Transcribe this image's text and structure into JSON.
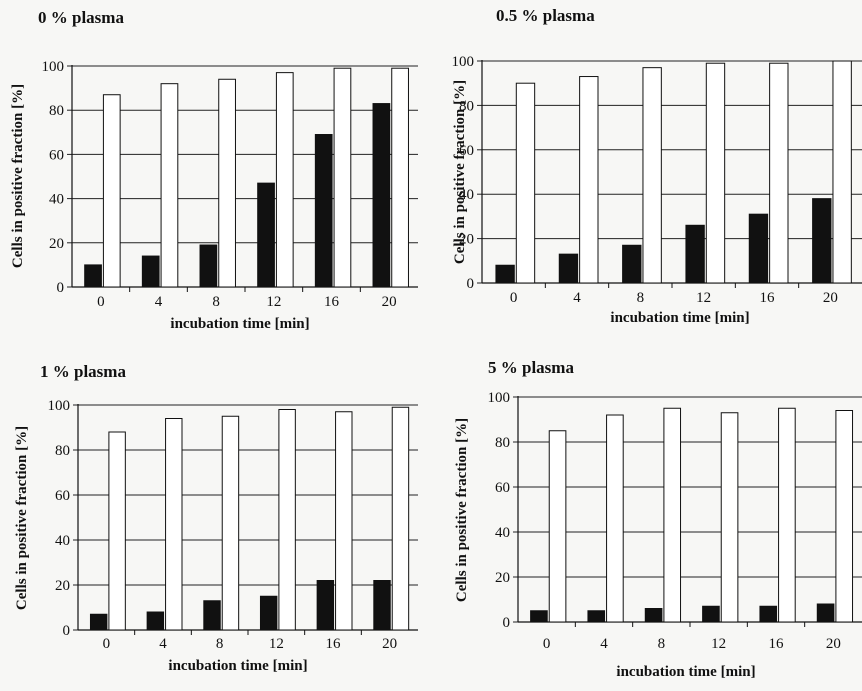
{
  "chart_data": [
    {
      "type": "bar",
      "title": "0 % plasma",
      "xlabel": "incubation time [min]",
      "ylabel": "Cells in positive fraction [%]",
      "ylim": [
        0,
        100
      ],
      "yticks": [
        0,
        20,
        40,
        60,
        80,
        100
      ],
      "grid": true,
      "categories": [
        "0",
        "4",
        "8",
        "12",
        "16",
        "20"
      ],
      "series": [
        {
          "values": [
            10,
            14,
            19,
            47,
            69,
            83
          ],
          "color": "#111111"
        },
        {
          "values": [
            87,
            92,
            94,
            97,
            99,
            99
          ],
          "color": "#ffffff"
        }
      ]
    },
    {
      "type": "bar",
      "title": "0.5 % plasma",
      "xlabel": "incubation time [min]",
      "ylabel": "Cells in positive fraction [%]",
      "ylim": [
        0,
        100
      ],
      "yticks": [
        0,
        20,
        40,
        60,
        80,
        100
      ],
      "grid": true,
      "categories": [
        "0",
        "4",
        "8",
        "12",
        "16",
        "20"
      ],
      "series": [
        {
          "values": [
            8,
            13,
            17,
            26,
            31,
            38
          ],
          "color": "#111111"
        },
        {
          "values": [
            90,
            93,
            97,
            99,
            99,
            100
          ],
          "color": "#ffffff"
        }
      ]
    },
    {
      "type": "bar",
      "title": "1 % plasma",
      "xlabel": "incubation time [min]",
      "ylabel": "Cells in positive fraction [%]",
      "ylim": [
        0,
        100
      ],
      "yticks": [
        0,
        20,
        40,
        60,
        80,
        100
      ],
      "grid": true,
      "categories": [
        "0",
        "4",
        "8",
        "12",
        "16",
        "20"
      ],
      "series": [
        {
          "values": [
            7,
            8,
            13,
            15,
            22,
            22
          ],
          "color": "#111111"
        },
        {
          "values": [
            88,
            94,
            95,
            98,
            97,
            99
          ],
          "color": "#ffffff"
        }
      ]
    },
    {
      "type": "bar",
      "title": "5 % plasma",
      "xlabel": "incubation time [min]",
      "ylabel": "Cells in positive fraction [%]",
      "ylim": [
        0,
        100
      ],
      "yticks": [
        0,
        20,
        40,
        60,
        80,
        100
      ],
      "grid": true,
      "categories": [
        "0",
        "4",
        "8",
        "12",
        "16",
        "20"
      ],
      "series": [
        {
          "values": [
            5,
            5,
            6,
            7,
            7,
            8
          ],
          "color": "#111111"
        },
        {
          "values": [
            85,
            92,
            95,
            93,
            95,
            94
          ],
          "color": "#ffffff"
        }
      ]
    }
  ]
}
